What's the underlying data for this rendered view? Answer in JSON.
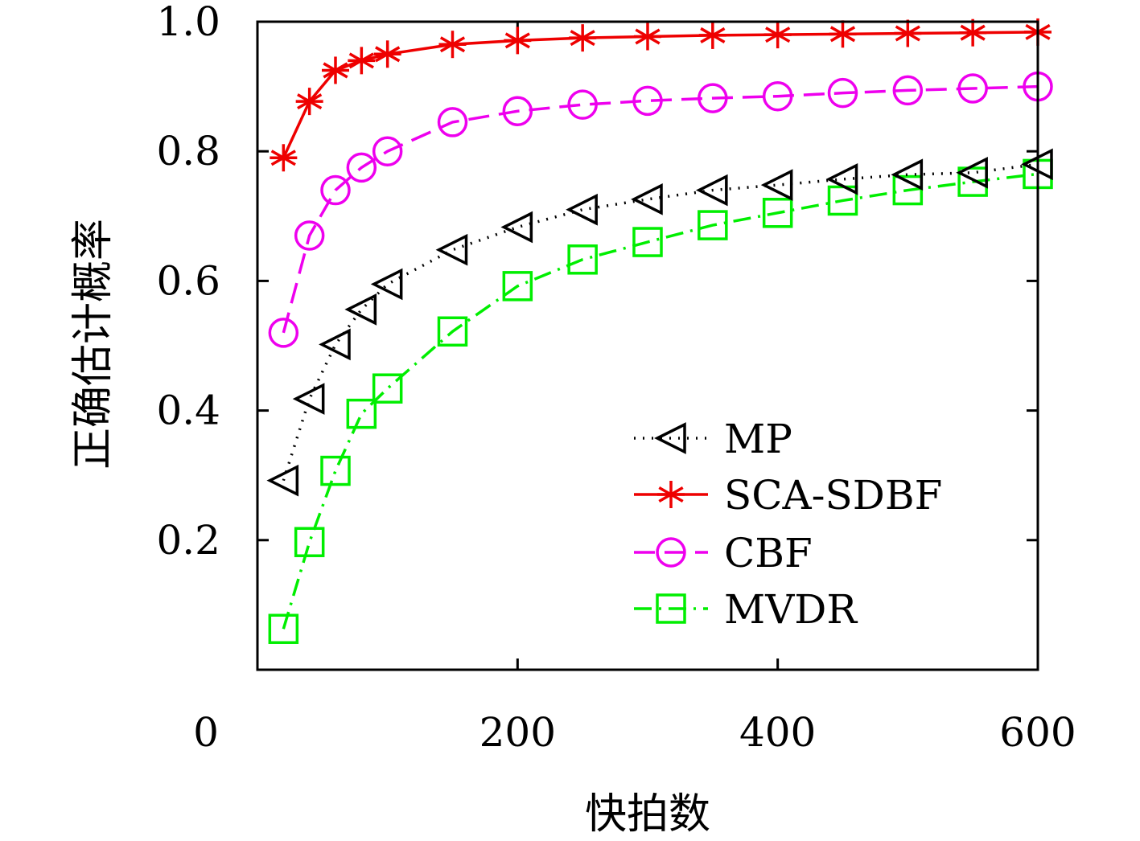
{
  "chart_data": {
    "type": "line",
    "xlabel": "快拍数",
    "ylabel": "正确估计概率",
    "xlim": [
      0,
      600
    ],
    "ylim": [
      0,
      1.0
    ],
    "xticks": [
      "0",
      "200",
      "400",
      "600"
    ],
    "xtick_values": [
      0,
      200,
      400,
      600
    ],
    "yticks": [
      "0.2",
      "0.4",
      "0.6",
      "0.8",
      "1.0"
    ],
    "ytick_values": [
      0.2,
      0.4,
      0.6,
      0.8,
      1.0
    ],
    "grid": false,
    "legend_position": "bottom-right",
    "x": [
      20,
      40,
      60,
      80,
      100,
      150,
      200,
      250,
      300,
      350,
      400,
      450,
      500,
      550,
      600
    ],
    "series": [
      {
        "name": "MP",
        "color": "#000000",
        "marker": "triangle-left",
        "line_style": "dotted",
        "values": [
          0.292,
          0.418,
          0.502,
          0.556,
          0.595,
          0.648,
          0.683,
          0.71,
          0.726,
          0.74,
          0.748,
          0.757,
          0.764,
          0.767,
          0.78
        ]
      },
      {
        "name": "SCA-SDBF",
        "color": "#ee0000",
        "marker": "asterisk",
        "line_style": "solid",
        "values": [
          0.79,
          0.877,
          0.925,
          0.94,
          0.95,
          0.965,
          0.971,
          0.975,
          0.977,
          0.979,
          0.98,
          0.981,
          0.982,
          0.983,
          0.984
        ]
      },
      {
        "name": "CBF",
        "color": "#ee00ee",
        "marker": "circle",
        "line_style": "dashed",
        "values": [
          0.52,
          0.67,
          0.74,
          0.775,
          0.8,
          0.845,
          0.862,
          0.872,
          0.878,
          0.882,
          0.885,
          0.89,
          0.894,
          0.897,
          0.9
        ]
      },
      {
        "name": "MVDR",
        "color": "#00ee00",
        "marker": "square",
        "line_style": "dash-dot",
        "values": [
          0.063,
          0.197,
          0.307,
          0.395,
          0.434,
          0.522,
          0.592,
          0.633,
          0.66,
          0.686,
          0.705,
          0.724,
          0.74,
          0.753,
          0.765
        ]
      }
    ]
  }
}
